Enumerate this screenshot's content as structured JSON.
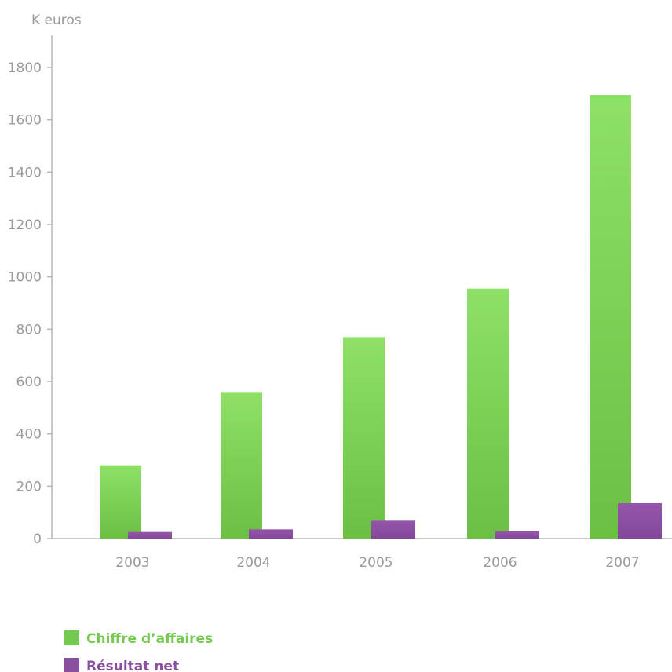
{
  "chart_data": {
    "type": "bar",
    "ylabel": "K euros",
    "xlabel": "",
    "categories": [
      "2003",
      "2004",
      "2005",
      "2006",
      "2007"
    ],
    "ylim": [
      0,
      1800
    ],
    "yticks": [
      "0",
      "200",
      "400",
      "600",
      "800",
      "1000",
      "1200",
      "1400",
      "1600",
      "1800"
    ],
    "grid": false,
    "legend_position": "bottom-left",
    "series": [
      {
        "name": "Chiffre d’affaires",
        "values": [
          280,
          560,
          770,
          955,
          1695
        ],
        "color": "#74c94f"
      },
      {
        "name": "Résultat net",
        "values": [
          25,
          35,
          68,
          28,
          135
        ],
        "color": "#8a4f9e"
      }
    ]
  }
}
